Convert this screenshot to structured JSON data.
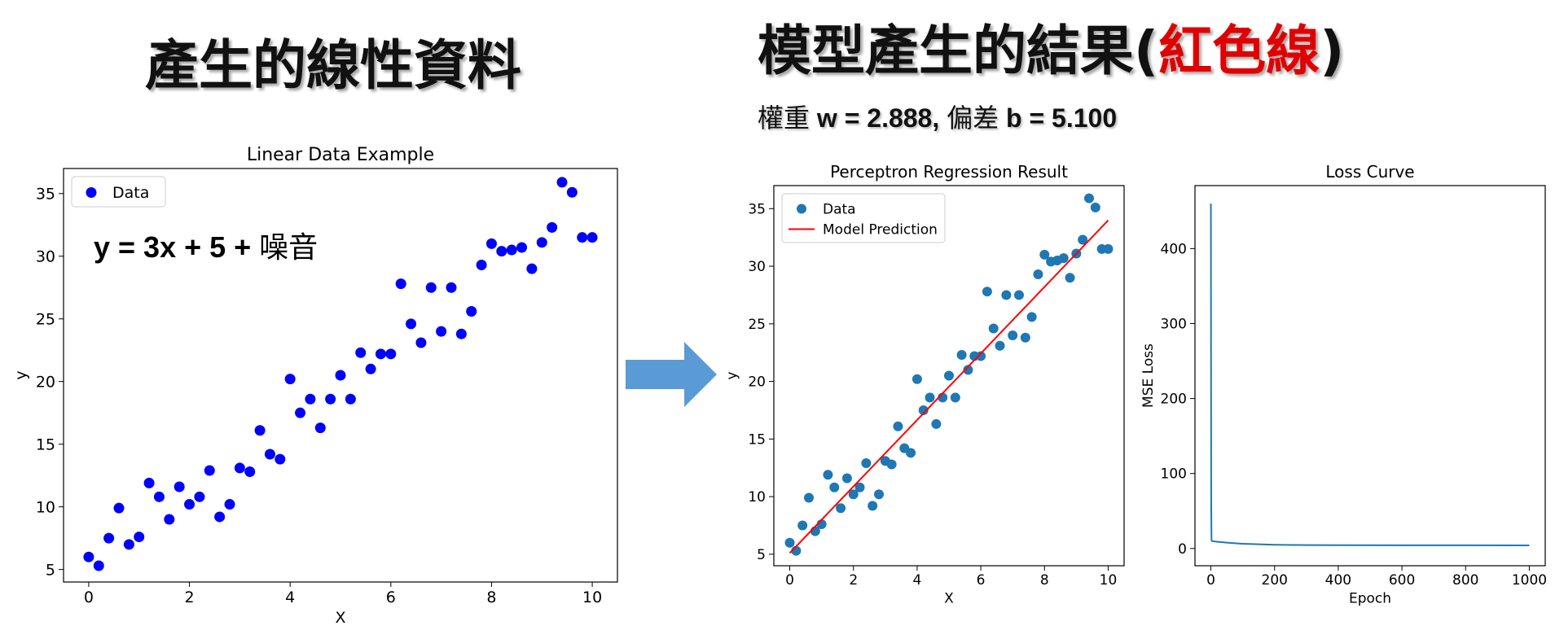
{
  "header": {
    "left_title": "產生的線性資料",
    "right_title_prefix": "模型產生的結果(",
    "right_title_red": "紅色線",
    "right_title_suffix": ")",
    "weights_label_w": "權重",
    "weights_w_value": " w = 2.888, ",
    "weights_label_b": "偏差",
    "weights_b_value": " b = 5.100"
  },
  "annotation": {
    "equation_main": "y = 3x + 5 + ",
    "equation_noise": "噪音"
  },
  "colors": {
    "left_points": "#0000ff",
    "right_points": "#1f77b4",
    "prediction_line": "#ff0000",
    "loss_line": "#1f77b4",
    "arrow": "#5b9bd5",
    "red_title": "#e00000"
  },
  "chart_data": [
    {
      "type": "scatter",
      "title": "Linear Data Example",
      "xlabel": "X",
      "ylabel": "y",
      "xlim": [
        -0.5,
        10.5
      ],
      "ylim": [
        4,
        37
      ],
      "xticks": [
        0,
        2,
        4,
        6,
        8,
        10
      ],
      "yticks": [
        5,
        10,
        15,
        20,
        25,
        30,
        35
      ],
      "legend_position": "top-left",
      "series": [
        {
          "name": "Data",
          "x": [
            0.0,
            0.2,
            0.4,
            0.6,
            0.8,
            1.0,
            1.2,
            1.4,
            1.6,
            1.8,
            2.0,
            2.2,
            2.4,
            2.6,
            2.8,
            3.0,
            3.2,
            3.4,
            3.6,
            3.8,
            4.0,
            4.2,
            4.4,
            4.6,
            4.8,
            5.0,
            5.2,
            5.4,
            5.6,
            5.8,
            6.0,
            6.2,
            6.4,
            6.6,
            6.8,
            7.0,
            7.2,
            7.4,
            7.6,
            7.8,
            8.0,
            8.2,
            8.4,
            8.6,
            8.8,
            9.0,
            9.2,
            9.4,
            9.6,
            9.8,
            10.0
          ],
          "y": [
            6.0,
            5.3,
            7.5,
            9.9,
            7.0,
            7.6,
            11.9,
            10.8,
            9.0,
            11.6,
            10.2,
            10.8,
            12.9,
            9.2,
            10.2,
            13.1,
            12.8,
            16.1,
            14.2,
            13.8,
            20.2,
            17.5,
            18.6,
            16.3,
            18.6,
            20.5,
            18.6,
            22.3,
            21.0,
            22.2,
            22.2,
            27.8,
            24.6,
            23.1,
            27.5,
            24.0,
            27.5,
            23.8,
            25.6,
            29.3,
            31.0,
            30.4,
            30.5,
            30.7,
            29.0,
            31.1,
            32.3,
            35.9,
            35.1,
            31.5,
            31.5
          ]
        }
      ]
    },
    {
      "type": "scatter",
      "title": "Perceptron Regression Result",
      "xlabel": "X",
      "ylabel": "y",
      "xlim": [
        -0.5,
        10.5
      ],
      "ylim": [
        4,
        37
      ],
      "xticks": [
        0,
        2,
        4,
        6,
        8,
        10
      ],
      "yticks": [
        5,
        10,
        15,
        20,
        25,
        30,
        35
      ],
      "legend_position": "top-left",
      "series": [
        {
          "name": "Data",
          "x": [
            0.0,
            0.2,
            0.4,
            0.6,
            0.8,
            1.0,
            1.2,
            1.4,
            1.6,
            1.8,
            2.0,
            2.2,
            2.4,
            2.6,
            2.8,
            3.0,
            3.2,
            3.4,
            3.6,
            3.8,
            4.0,
            4.2,
            4.4,
            4.6,
            4.8,
            5.0,
            5.2,
            5.4,
            5.6,
            5.8,
            6.0,
            6.2,
            6.4,
            6.6,
            6.8,
            7.0,
            7.2,
            7.4,
            7.6,
            7.8,
            8.0,
            8.2,
            8.4,
            8.6,
            8.8,
            9.0,
            9.2,
            9.4,
            9.6,
            9.8,
            10.0
          ],
          "y": [
            6.0,
            5.3,
            7.5,
            9.9,
            7.0,
            7.6,
            11.9,
            10.8,
            9.0,
            11.6,
            10.2,
            10.8,
            12.9,
            9.2,
            10.2,
            13.1,
            12.8,
            16.1,
            14.2,
            13.8,
            20.2,
            17.5,
            18.6,
            16.3,
            18.6,
            20.5,
            18.6,
            22.3,
            21.0,
            22.2,
            22.2,
            27.8,
            24.6,
            23.1,
            27.5,
            24.0,
            27.5,
            23.8,
            25.6,
            29.3,
            31.0,
            30.4,
            30.5,
            30.7,
            29.0,
            31.1,
            32.3,
            35.9,
            35.1,
            31.5,
            31.5
          ]
        },
        {
          "name": "Model Prediction",
          "kind": "line",
          "x": [
            0,
            10
          ],
          "y": [
            5.1,
            33.98
          ]
        }
      ]
    },
    {
      "type": "line",
      "title": "Loss Curve",
      "xlabel": "Epoch",
      "ylabel": "MSE Loss",
      "xlim": [
        -50,
        1050
      ],
      "ylim": [
        -23,
        484
      ],
      "xticks": [
        0,
        200,
        400,
        600,
        800,
        1000
      ],
      "yticks": [
        0,
        100,
        200,
        300,
        400
      ],
      "series": [
        {
          "x": [
            0,
            1,
            2,
            3,
            5,
            10,
            20,
            50,
            100,
            200,
            300,
            400,
            600,
            800,
            1000
          ],
          "y": [
            460,
            60,
            11,
            10,
            9.8,
            9.5,
            9.0,
            7.8,
            6.3,
            5.0,
            4.6,
            4.4,
            4.3,
            4.25,
            4.2
          ]
        }
      ]
    }
  ]
}
